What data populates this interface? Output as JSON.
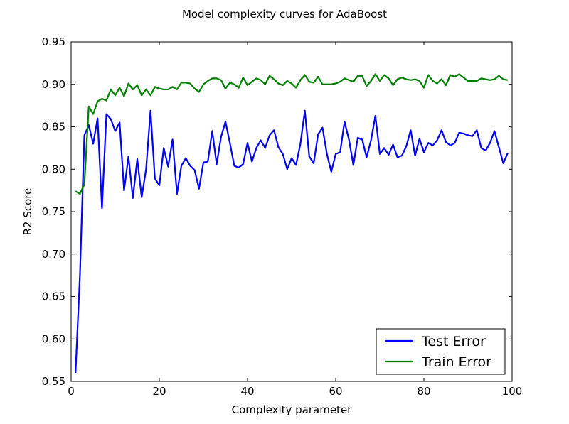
{
  "chart_data": {
    "type": "line",
    "title": "Model complexity curves for AdaBoost",
    "xlabel": "Complexity parameter",
    "ylabel": "R2 Score",
    "xlim": [
      0,
      100
    ],
    "ylim": [
      0.55,
      0.95
    ],
    "xticks": [
      0,
      20,
      40,
      60,
      80,
      100
    ],
    "xtick_labels": [
      "0",
      "20",
      "40",
      "60",
      "80",
      "100"
    ],
    "yticks": [
      0.55,
      0.6,
      0.65,
      0.7,
      0.75,
      0.8,
      0.85,
      0.9,
      0.95
    ],
    "ytick_labels": [
      "0.55",
      "0.60",
      "0.65",
      "0.70",
      "0.75",
      "0.80",
      "0.85",
      "0.90",
      "0.95"
    ],
    "grid": false,
    "legend": "lower-right",
    "x": [
      1,
      2,
      3,
      4,
      5,
      6,
      7,
      8,
      9,
      10,
      11,
      12,
      13,
      14,
      15,
      16,
      17,
      18,
      19,
      20,
      21,
      22,
      23,
      24,
      25,
      26,
      27,
      28,
      29,
      30,
      31,
      32,
      33,
      34,
      35,
      36,
      37,
      38,
      39,
      40,
      41,
      42,
      43,
      44,
      45,
      46,
      47,
      48,
      49,
      50,
      51,
      52,
      53,
      54,
      55,
      56,
      57,
      58,
      59,
      60,
      61,
      62,
      63,
      64,
      65,
      66,
      67,
      68,
      69,
      70,
      71,
      72,
      73,
      74,
      75,
      76,
      77,
      78,
      79,
      80,
      81,
      82,
      83,
      84,
      85,
      86,
      87,
      88,
      89,
      90,
      91,
      92,
      93,
      94,
      95,
      96,
      97,
      98,
      99
    ],
    "series": [
      {
        "name": "Test Error",
        "color": "#0000ff",
        "values": [
          0.56,
          0.675,
          0.84,
          0.852,
          0.83,
          0.86,
          0.754,
          0.865,
          0.859,
          0.845,
          0.855,
          0.775,
          0.815,
          0.766,
          0.812,
          0.767,
          0.8,
          0.869,
          0.789,
          0.781,
          0.825,
          0.803,
          0.835,
          0.771,
          0.804,
          0.813,
          0.804,
          0.799,
          0.777,
          0.808,
          0.809,
          0.845,
          0.806,
          0.838,
          0.856,
          0.831,
          0.804,
          0.802,
          0.806,
          0.831,
          0.809,
          0.825,
          0.834,
          0.825,
          0.84,
          0.846,
          0.826,
          0.818,
          0.8,
          0.813,
          0.805,
          0.83,
          0.869,
          0.815,
          0.807,
          0.841,
          0.849,
          0.818,
          0.797,
          0.818,
          0.82,
          0.856,
          0.835,
          0.805,
          0.837,
          0.835,
          0.814,
          0.834,
          0.863,
          0.818,
          0.825,
          0.817,
          0.829,
          0.814,
          0.816,
          0.827,
          0.846,
          0.816,
          0.836,
          0.82,
          0.831,
          0.828,
          0.834,
          0.846,
          0.832,
          0.828,
          0.831,
          0.843,
          0.842,
          0.84,
          0.839,
          0.846,
          0.825,
          0.822,
          0.831,
          0.845,
          0.826,
          0.807,
          0.819
        ]
      },
      {
        "name": "Train Error",
        "color": "#008000",
        "values": [
          0.774,
          0.771,
          0.782,
          0.874,
          0.865,
          0.88,
          0.883,
          0.881,
          0.894,
          0.887,
          0.896,
          0.886,
          0.901,
          0.894,
          0.899,
          0.887,
          0.894,
          0.887,
          0.897,
          0.895,
          0.894,
          0.894,
          0.897,
          0.894,
          0.902,
          0.902,
          0.901,
          0.895,
          0.891,
          0.9,
          0.904,
          0.907,
          0.907,
          0.905,
          0.895,
          0.902,
          0.9,
          0.896,
          0.908,
          0.899,
          0.903,
          0.907,
          0.905,
          0.9,
          0.91,
          0.906,
          0.901,
          0.899,
          0.904,
          0.901,
          0.896,
          0.905,
          0.911,
          0.903,
          0.902,
          0.909,
          0.9,
          0.9,
          0.9,
          0.901,
          0.903,
          0.907,
          0.905,
          0.903,
          0.91,
          0.91,
          0.898,
          0.904,
          0.912,
          0.904,
          0.911,
          0.907,
          0.899,
          0.906,
          0.908,
          0.906,
          0.905,
          0.906,
          0.904,
          0.896,
          0.911,
          0.904,
          0.901,
          0.906,
          0.899,
          0.911,
          0.909,
          0.912,
          0.908,
          0.904,
          0.904,
          0.904,
          0.907,
          0.906,
          0.905,
          0.906,
          0.91,
          0.906,
          0.905
        ]
      }
    ]
  }
}
